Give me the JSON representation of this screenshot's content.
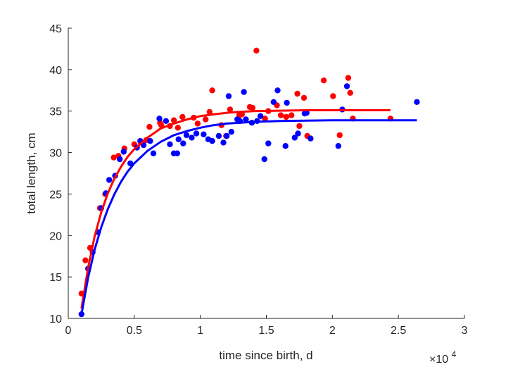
{
  "chart_data": {
    "type": "scatter",
    "xlabel": "time since birth, d",
    "ylabel": "total length, cm",
    "xlim": [
      0,
      30000
    ],
    "ylim": [
      10,
      45
    ],
    "x_ticks": [
      0,
      5000,
      10000,
      15000,
      20000,
      25000,
      30000
    ],
    "x_tick_labels": [
      "0",
      "0.5",
      "1",
      "1.5",
      "2",
      "2.5",
      "3"
    ],
    "y_ticks": [
      10,
      15,
      20,
      25,
      30,
      35,
      40,
      45
    ],
    "y_tick_labels": [
      "10",
      "15",
      "20",
      "25",
      "30",
      "35",
      "40",
      "45"
    ],
    "x_exponent_base": "×10",
    "x_exponent_power": "4",
    "grid": false,
    "box": false,
    "series": [
      {
        "color": "#ff0000",
        "points": [
          [
            1000,
            13.0
          ],
          [
            1300,
            17.0
          ],
          [
            1650,
            18.5
          ],
          [
            2400,
            23.3
          ],
          [
            2800,
            25.0
          ],
          [
            3450,
            29.4
          ],
          [
            3800,
            29.6
          ],
          [
            4250,
            30.5
          ],
          [
            5000,
            31.0
          ],
          [
            5500,
            31.2
          ],
          [
            5900,
            31.5
          ],
          [
            6150,
            33.1
          ],
          [
            6950,
            33.6
          ],
          [
            7050,
            33.3
          ],
          [
            7700,
            33.2
          ],
          [
            8000,
            33.9
          ],
          [
            8300,
            33.0
          ],
          [
            8650,
            34.3
          ],
          [
            9500,
            34.2
          ],
          [
            9800,
            33.5
          ],
          [
            10400,
            34.0
          ],
          [
            10700,
            34.9
          ],
          [
            10900,
            37.5
          ],
          [
            11600,
            33.3
          ],
          [
            11950,
            32.0
          ],
          [
            12250,
            35.2
          ],
          [
            12950,
            34.5
          ],
          [
            13150,
            34.6
          ],
          [
            13750,
            35.5
          ],
          [
            13950,
            35.4
          ],
          [
            14250,
            42.3
          ],
          [
            14900,
            34.1
          ],
          [
            15150,
            35.0
          ],
          [
            15800,
            35.7
          ],
          [
            16100,
            34.5
          ],
          [
            16500,
            34.3
          ],
          [
            16900,
            34.5
          ],
          [
            17350,
            37.1
          ],
          [
            17500,
            33.2
          ],
          [
            17850,
            36.6
          ],
          [
            18100,
            32.0
          ],
          [
            19350,
            38.7
          ],
          [
            20050,
            36.8
          ],
          [
            20550,
            32.1
          ],
          [
            21200,
            39.0
          ],
          [
            21350,
            37.2
          ],
          [
            21550,
            34.1
          ],
          [
            24400,
            34.1
          ]
        ],
        "fit": [
          [
            1000,
            11.2
          ],
          [
            1500,
            16.1
          ],
          [
            2000,
            19.9
          ],
          [
            2500,
            22.8
          ],
          [
            3000,
            25.1
          ],
          [
            3500,
            26.9
          ],
          [
            4000,
            28.3
          ],
          [
            4500,
            29.5
          ],
          [
            5000,
            30.4
          ],
          [
            6000,
            31.8
          ],
          [
            7000,
            32.9
          ],
          [
            8000,
            33.5
          ],
          [
            9000,
            34.0
          ],
          [
            10000,
            34.4
          ],
          [
            11000,
            34.6
          ],
          [
            12000,
            34.8
          ],
          [
            13000,
            34.9
          ],
          [
            14000,
            35.0
          ],
          [
            16000,
            35.05
          ],
          [
            18000,
            35.1
          ],
          [
            20000,
            35.1
          ],
          [
            22000,
            35.1
          ],
          [
            24400,
            35.1
          ]
        ]
      },
      {
        "color": "#0000ff",
        "points": [
          [
            1000,
            10.5
          ],
          [
            1500,
            16.0
          ],
          [
            1850,
            18.0
          ],
          [
            2250,
            20.4
          ],
          [
            2500,
            23.3
          ],
          [
            2850,
            25.1
          ],
          [
            3100,
            26.7
          ],
          [
            3550,
            27.2
          ],
          [
            3900,
            29.2
          ],
          [
            4200,
            30.1
          ],
          [
            4700,
            28.7
          ],
          [
            5200,
            30.6
          ],
          [
            5450,
            31.4
          ],
          [
            5700,
            30.9
          ],
          [
            6200,
            31.4
          ],
          [
            6450,
            29.9
          ],
          [
            6900,
            34.1
          ],
          [
            7400,
            33.8
          ],
          [
            7700,
            31.0
          ],
          [
            8000,
            29.9
          ],
          [
            8250,
            29.9
          ],
          [
            8350,
            31.6
          ],
          [
            8700,
            31.1
          ],
          [
            8950,
            32.1
          ],
          [
            9350,
            31.8
          ],
          [
            9700,
            32.3
          ],
          [
            10250,
            32.2
          ],
          [
            10600,
            31.6
          ],
          [
            10900,
            31.4
          ],
          [
            11400,
            32.0
          ],
          [
            11750,
            31.2
          ],
          [
            12000,
            32.0
          ],
          [
            12150,
            36.8
          ],
          [
            12350,
            32.5
          ],
          [
            12800,
            34.0
          ],
          [
            13000,
            33.8
          ],
          [
            13300,
            37.3
          ],
          [
            13450,
            34.0
          ],
          [
            13900,
            33.6
          ],
          [
            14300,
            33.8
          ],
          [
            14550,
            34.4
          ],
          [
            14850,
            29.2
          ],
          [
            15150,
            31.1
          ],
          [
            15550,
            36.1
          ],
          [
            15850,
            37.5
          ],
          [
            16450,
            30.8
          ],
          [
            16550,
            36.0
          ],
          [
            17150,
            31.8
          ],
          [
            17400,
            32.3
          ],
          [
            17900,
            34.7
          ],
          [
            18050,
            34.8
          ],
          [
            18350,
            31.7
          ],
          [
            20450,
            30.8
          ],
          [
            20750,
            35.2
          ],
          [
            21100,
            38.0
          ],
          [
            26400,
            36.1
          ]
        ],
        "fit": [
          [
            1000,
            10.5
          ],
          [
            1500,
            14.9
          ],
          [
            2000,
            18.3
          ],
          [
            2500,
            21.0
          ],
          [
            3000,
            23.2
          ],
          [
            3500,
            25.0
          ],
          [
            4000,
            26.5
          ],
          [
            4500,
            27.7
          ],
          [
            5000,
            28.7
          ],
          [
            6000,
            30.2
          ],
          [
            7000,
            31.3
          ],
          [
            8000,
            32.1
          ],
          [
            9000,
            32.6
          ],
          [
            10000,
            33.0
          ],
          [
            11000,
            33.3
          ],
          [
            12000,
            33.5
          ],
          [
            13000,
            33.6
          ],
          [
            14000,
            33.7
          ],
          [
            16000,
            33.8
          ],
          [
            18000,
            33.85
          ],
          [
            20000,
            33.9
          ],
          [
            22000,
            33.9
          ],
          [
            24000,
            33.9
          ],
          [
            26400,
            33.9
          ]
        ]
      }
    ]
  }
}
